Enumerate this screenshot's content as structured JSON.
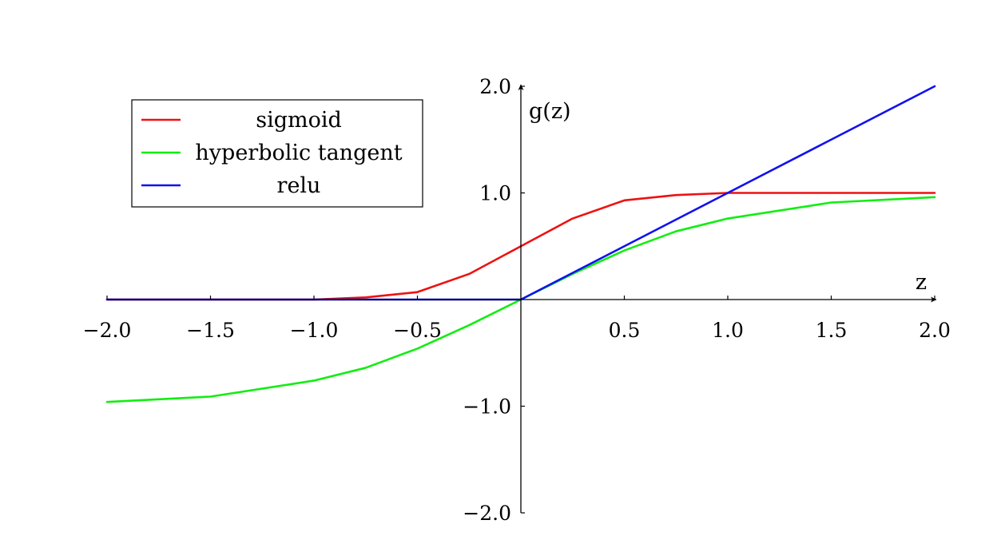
{
  "chart_data": {
    "type": "line",
    "xlabel": "z",
    "ylabel": "g(z)",
    "xlim": [
      -2.0,
      2.0
    ],
    "ylim": [
      -2.0,
      2.0
    ],
    "x_ticks": [
      -2.0,
      -1.5,
      -1.0,
      -0.5,
      0.5,
      1.0,
      1.5,
      2.0
    ],
    "x_tick_labels": [
      "−2.0",
      "−1.5",
      "−1.0",
      "−0.5",
      "0.5",
      "1.0",
      "1.5",
      "2.0"
    ],
    "y_ticks": [
      -2.0,
      -1.0,
      1.0,
      2.0
    ],
    "y_tick_labels": [
      "−2.0",
      "−1.0",
      "1.0",
      "2.0"
    ],
    "grid": false,
    "legend_position": "top-left",
    "x": [
      -2.0,
      -1.5,
      -1.0,
      -0.75,
      -0.5,
      -0.25,
      0.0,
      0.25,
      0.5,
      0.75,
      1.0,
      1.5,
      2.0
    ],
    "series": [
      {
        "name": "sigmoid",
        "color": "#ee1111",
        "values": [
          0.0,
          0.0,
          0.0,
          0.02,
          0.07,
          0.24,
          0.5,
          0.76,
          0.93,
          0.98,
          1.0,
          1.0,
          1.0
        ]
      },
      {
        "name": "hyperbolic tangent",
        "color": "#11ee11",
        "values": [
          -0.96,
          -0.91,
          -0.76,
          -0.64,
          -0.46,
          -0.24,
          0.0,
          0.24,
          0.46,
          0.64,
          0.76,
          0.91,
          0.96
        ]
      },
      {
        "name": "relu",
        "color": "#1111ee",
        "values": [
          0.0,
          0.0,
          0.0,
          0.0,
          0.0,
          0.0,
          0.0,
          0.25,
          0.5,
          0.75,
          1.0,
          1.5,
          2.0
        ]
      }
    ]
  }
}
